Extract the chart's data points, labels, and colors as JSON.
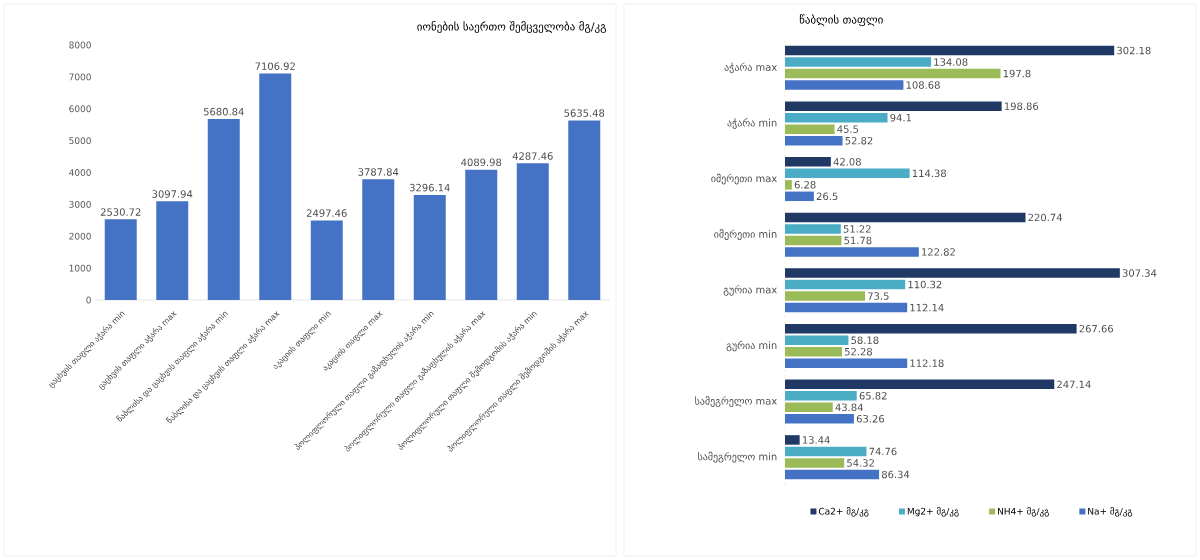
{
  "chart_data": [
    {
      "type": "bar",
      "title": "იონების საერთო შემცველობა მგ/კგ",
      "categories": [
        "ცაცხვის თაფლი აჭარა min",
        "ცაცხვის თაფლი აჭარა max",
        "წაბლისა და ცაცხვის თაფლი აჭარა min",
        "წაბლისა და ცაცხვის თაფლი აჭარა max",
        "აკაციის თაფლი min",
        "აკაციის თაფლი max",
        "პოლიფლორული თაფლი გაზაფხულის აჭარა min",
        "პოლიფლორული თაფლი გაზაფხულის აჭარა max",
        "პოლიფლორული თაფლი შემოდგომის აჭარა min",
        "პოლიფლორული თაფლი შემოდგომის აჭარა max"
      ],
      "values": [
        2530.72,
        3097.94,
        5680.84,
        7106.92,
        2497.46,
        3787.84,
        3296.14,
        4089.98,
        4287.46,
        5635.48
      ],
      "color": "#4472c4",
      "ylim": [
        0,
        8000
      ],
      "yticks": [
        0,
        1000,
        2000,
        3000,
        4000,
        5000,
        6000,
        7000,
        8000
      ],
      "data_labels": true
    },
    {
      "type": "bar",
      "orientation": "horizontal",
      "title": "წაბლის თაფლი",
      "categories": [
        "აჭარა max",
        "აჭარა min",
        "იმერეთი max",
        "იმერეთი min",
        "გურია max",
        "გურია min",
        "სამეგრელო max",
        "სამეგრელო min"
      ],
      "series": [
        {
          "name": "Ca2+ მგ/კგ",
          "color": "#1f3864",
          "values": [
            302.18,
            198.86,
            42.08,
            220.74,
            307.34,
            267.66,
            247.14,
            13.44
          ]
        },
        {
          "name": "Mg2+ მგ/კგ",
          "color": "#4bacc6",
          "values": [
            134.08,
            94.1,
            114.38,
            51.22,
            110.32,
            58.18,
            65.82,
            74.76
          ]
        },
        {
          "name": "NH4+ მგ/კგ",
          "color": "#9bbb59",
          "values": [
            197.8,
            45.5,
            6.28,
            51.78,
            73.5,
            52.28,
            43.84,
            54.32
          ]
        },
        {
          "name": "Na+ მგ/კგ",
          "color": "#4472c4",
          "values": [
            108.68,
            52.82,
            26.5,
            122.82,
            112.14,
            112.18,
            63.26,
            86.34
          ]
        }
      ],
      "tick_labels": "y",
      "legend": "bottom",
      "data_labels": true
    }
  ]
}
